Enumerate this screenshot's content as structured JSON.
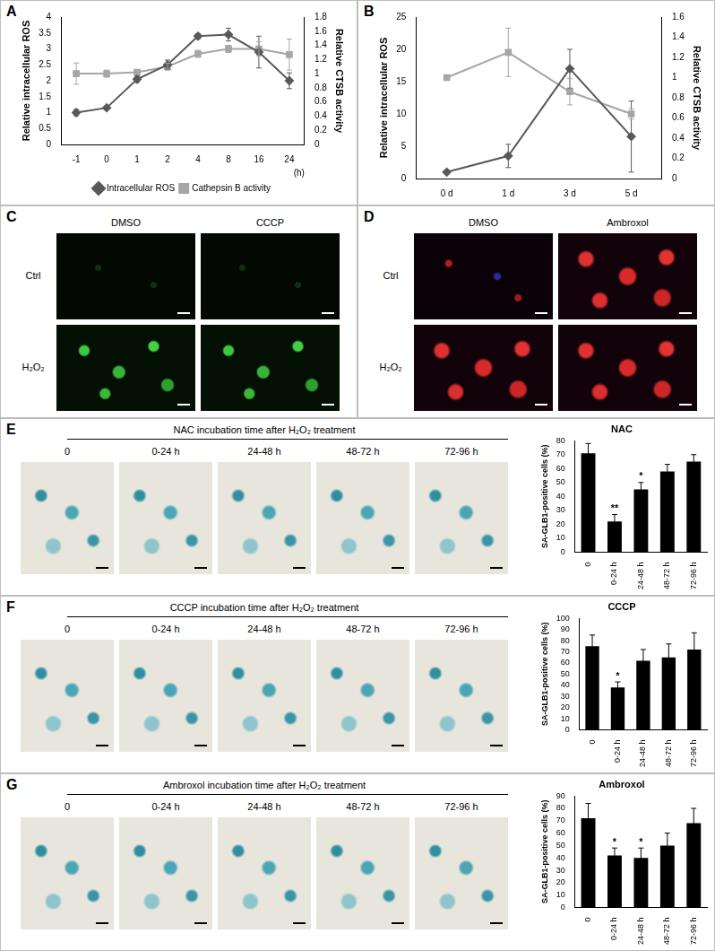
{
  "chart_data": [
    {
      "panel": "A",
      "type": "line",
      "categories": [
        "-1",
        "0",
        "1",
        "2",
        "4",
        "8",
        "16",
        "24"
      ],
      "x_label": "(h)",
      "y_label": "Relative intracellular ROS",
      "y2_label": "Relative CTSB activity",
      "ylim": [
        0,
        4
      ],
      "yticks": [
        0,
        0.5,
        1,
        1.5,
        2,
        2.5,
        3,
        3.5,
        4
      ],
      "y2lim": [
        0,
        1.8
      ],
      "y2ticks": [
        0,
        0.2,
        0.4,
        0.6,
        0.8,
        1,
        1.2,
        1.4,
        1.6,
        1.8
      ],
      "grid": false,
      "legend": "bottom",
      "series": [
        {
          "name": "Intracellular ROS",
          "color": "#595959",
          "marker": "diamond",
          "values": [
            1.0,
            1.15,
            2.05,
            2.5,
            3.4,
            3.45,
            2.9,
            2.0
          ],
          "errors": [
            0.1,
            0.05,
            0.1,
            0.15,
            0.08,
            0.2,
            0.5,
            0.25
          ]
        },
        {
          "name": "Cathepsin B activity",
          "color": "#a6a6a6",
          "marker": "square",
          "axis": "y2",
          "values": [
            1.0,
            1.0,
            1.02,
            1.1,
            1.28,
            1.35,
            1.35,
            1.27
          ],
          "errors": [
            0.15,
            0.05,
            0.03,
            0.05,
            0.05,
            0.05,
            0.1,
            0.22
          ]
        }
      ]
    },
    {
      "panel": "B",
      "type": "line",
      "categories": [
        "0 d",
        "1 d",
        "3 d",
        "5 d"
      ],
      "y_label": "Relative intracellular ROS",
      "y2_label": "Relative CTSB activity",
      "ylim": [
        0,
        25
      ],
      "yticks": [
        0,
        5,
        10,
        15,
        20,
        25
      ],
      "y2lim": [
        0,
        1.6
      ],
      "y2ticks": [
        0,
        0.2,
        0.4,
        0.6,
        0.8,
        1,
        1.2,
        1.4,
        1.6
      ],
      "grid": false,
      "series": [
        {
          "name": "Intracellular ROS",
          "color": "#595959",
          "marker": "diamond",
          "values": [
            1.0,
            3.5,
            17,
            6.5
          ],
          "errors": [
            0.3,
            1.8,
            3,
            5.5
          ]
        },
        {
          "name": "Cathepsin B activity",
          "color": "#a6a6a6",
          "marker": "square",
          "axis": "y2",
          "values": [
            1.0,
            1.25,
            0.86,
            0.64
          ],
          "errors": [
            0.02,
            0.24,
            0.13,
            0.05
          ]
        }
      ]
    },
    {
      "type": "bar",
      "title": "NAC",
      "categories": [
        "0",
        "0-24 h",
        "24-48 h",
        "48-72 h",
        "72-96 h"
      ],
      "values": [
        71,
        22,
        45,
        58,
        65
      ],
      "errors": [
        7,
        5,
        5,
        5,
        5
      ],
      "significance": [
        {
          "category": "0-24 h",
          "text": "**"
        },
        {
          "category": "24-48 h",
          "text": "*"
        }
      ],
      "color": "#000000",
      "y_label": "SA-GLB1-positive cells (%)",
      "ylim": [
        0,
        80
      ],
      "yticks": [
        0,
        10,
        20,
        30,
        40,
        50,
        60,
        70,
        80
      ],
      "grid": false
    },
    {
      "type": "bar",
      "title": "CCCP",
      "categories": [
        "0",
        "0-24 h",
        "24-48 h",
        "48-72 h",
        "72-96 h"
      ],
      "values": [
        75,
        38,
        62,
        65,
        72
      ],
      "errors": [
        10,
        5,
        10,
        12,
        15
      ],
      "significance": [
        {
          "category": "0-24 h",
          "text": "*"
        }
      ],
      "color": "#000000",
      "y_label": "SA-GLB1-positive cells (%)",
      "ylim": [
        0,
        100
      ],
      "yticks": [
        0,
        10,
        20,
        30,
        40,
        50,
        60,
        70,
        80,
        90,
        100
      ],
      "grid": false
    },
    {
      "type": "bar",
      "title": "Ambroxol",
      "categories": [
        "0",
        "0-24 h",
        "24-48 h",
        "48-72 h",
        "72-96 h"
      ],
      "values": [
        72,
        42,
        40,
        50,
        68
      ],
      "errors": [
        12,
        6,
        8,
        10,
        12
      ],
      "significance": [
        {
          "category": "0-24 h",
          "text": "*"
        },
        {
          "category": "24-48 h",
          "text": "*"
        }
      ],
      "color": "#000000",
      "y_label": "SA-GLB1-positive cells (%)",
      "ylim": [
        0,
        90
      ],
      "yticks": [
        0,
        10,
        20,
        30,
        40,
        50,
        60,
        70,
        80,
        90
      ],
      "grid": false
    }
  ],
  "image_panels": [
    {
      "panel": "C",
      "columns": [
        "DMSO",
        "CCCP"
      ],
      "rows": [
        "Ctrl",
        "H₂O₂"
      ]
    },
    {
      "panel": "D",
      "columns": [
        "DMSO",
        "Ambroxol"
      ],
      "rows": [
        "Ctrl",
        "H₂O₂"
      ]
    },
    {
      "panel": "E",
      "heading": "NAC incubation time after H₂O₂ treatment",
      "images": [
        "0",
        "0-24 h",
        "24-48 h",
        "48-72 h",
        "72-96 h"
      ]
    },
    {
      "panel": "F",
      "heading": "CCCP incubation time after H₂O₂ treatment",
      "images": [
        "0",
        "0-24 h",
        "24-48 h",
        "48-72 h",
        "72-96 h"
      ]
    },
    {
      "panel": "G",
      "heading": "Ambroxol incubation time after H₂O₂ treatment",
      "images": [
        "0",
        "0-24 h",
        "24-48 h",
        "48-72 h",
        "72-96 h"
      ]
    }
  ]
}
